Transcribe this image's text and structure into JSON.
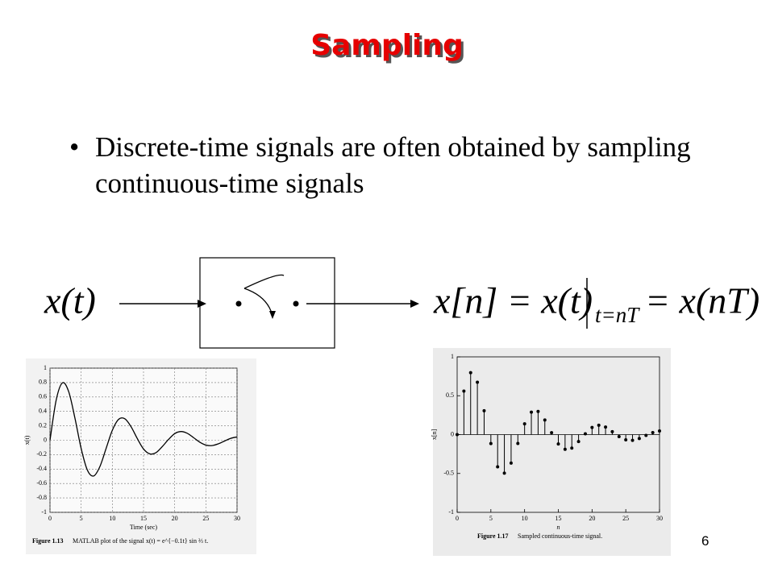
{
  "title": "Sampling",
  "bullet": "Discrete-time signals are often obtained by sampling continuous-time signals",
  "diagram": {
    "input": "x(t)",
    "output": "x[n] = x(t)",
    "subscript": "t=nT",
    "output_rhs": "= x(nT)"
  },
  "chart_data": [
    {
      "type": "line",
      "color": "#000000",
      "grid": true,
      "x": [
        0,
        1,
        2,
        3,
        4,
        5,
        6,
        7,
        8,
        9,
        10,
        11,
        12,
        13,
        14,
        15,
        16,
        17,
        18,
        19,
        20,
        21,
        22,
        23,
        24,
        25,
        26,
        27,
        28,
        29,
        30
      ],
      "values": [
        0,
        0.56,
        0.796,
        0.674,
        0.307,
        -0.115,
        -0.415,
        -0.496,
        -0.366,
        -0.114,
        0.138,
        0.289,
        0.298,
        0.188,
        0.024,
        -0.121,
        -0.189,
        -0.173,
        -0.089,
        0.01,
        0.092,
        0.121,
        0.097,
        0.038,
        -0.026,
        -0.067,
        -0.074,
        -0.05,
        -0.011,
        0.026,
        0.046
      ],
      "xlim": [
        0,
        30
      ],
      "xticks": [
        0,
        5,
        10,
        15,
        20,
        25,
        30
      ],
      "ylim": [
        -1,
        1
      ],
      "yticks": [
        -1,
        -0.8,
        -0.6,
        -0.4,
        -0.2,
        0,
        0.2,
        0.4,
        0.6,
        0.8,
        1
      ],
      "x_label": "Time (sec)",
      "y_label": "x(t)",
      "caption_number": "Figure 1.13",
      "caption": "MATLAB plot of the signal x(t) = e^{−0.1t} sin ⅔ t."
    },
    {
      "type": "stem",
      "color": "#000000",
      "grid": false,
      "x": [
        0,
        1,
        2,
        3,
        4,
        5,
        6,
        7,
        8,
        9,
        10,
        11,
        12,
        13,
        14,
        15,
        16,
        17,
        18,
        19,
        20,
        21,
        22,
        23,
        24,
        25,
        26,
        27,
        28,
        29,
        30
      ],
      "values": [
        0,
        0.56,
        0.796,
        0.674,
        0.307,
        -0.115,
        -0.415,
        -0.496,
        -0.366,
        -0.114,
        0.138,
        0.289,
        0.298,
        0.188,
        0.024,
        -0.121,
        -0.189,
        -0.173,
        -0.089,
        0.01,
        0.092,
        0.121,
        0.097,
        0.038,
        -0.026,
        -0.067,
        -0.074,
        -0.05,
        -0.011,
        0.026,
        0.046
      ],
      "xlim": [
        0,
        30
      ],
      "xticks": [
        0,
        5,
        10,
        15,
        20,
        25,
        30
      ],
      "ylim": [
        -1,
        1
      ],
      "yticks": [
        -1,
        -0.5,
        0,
        0.5,
        1
      ],
      "x_label": "n",
      "y_label": "x[n]",
      "caption_number": "Figure 1.17",
      "caption": "Sampled continuous-time signal."
    }
  ],
  "page_number": "6"
}
